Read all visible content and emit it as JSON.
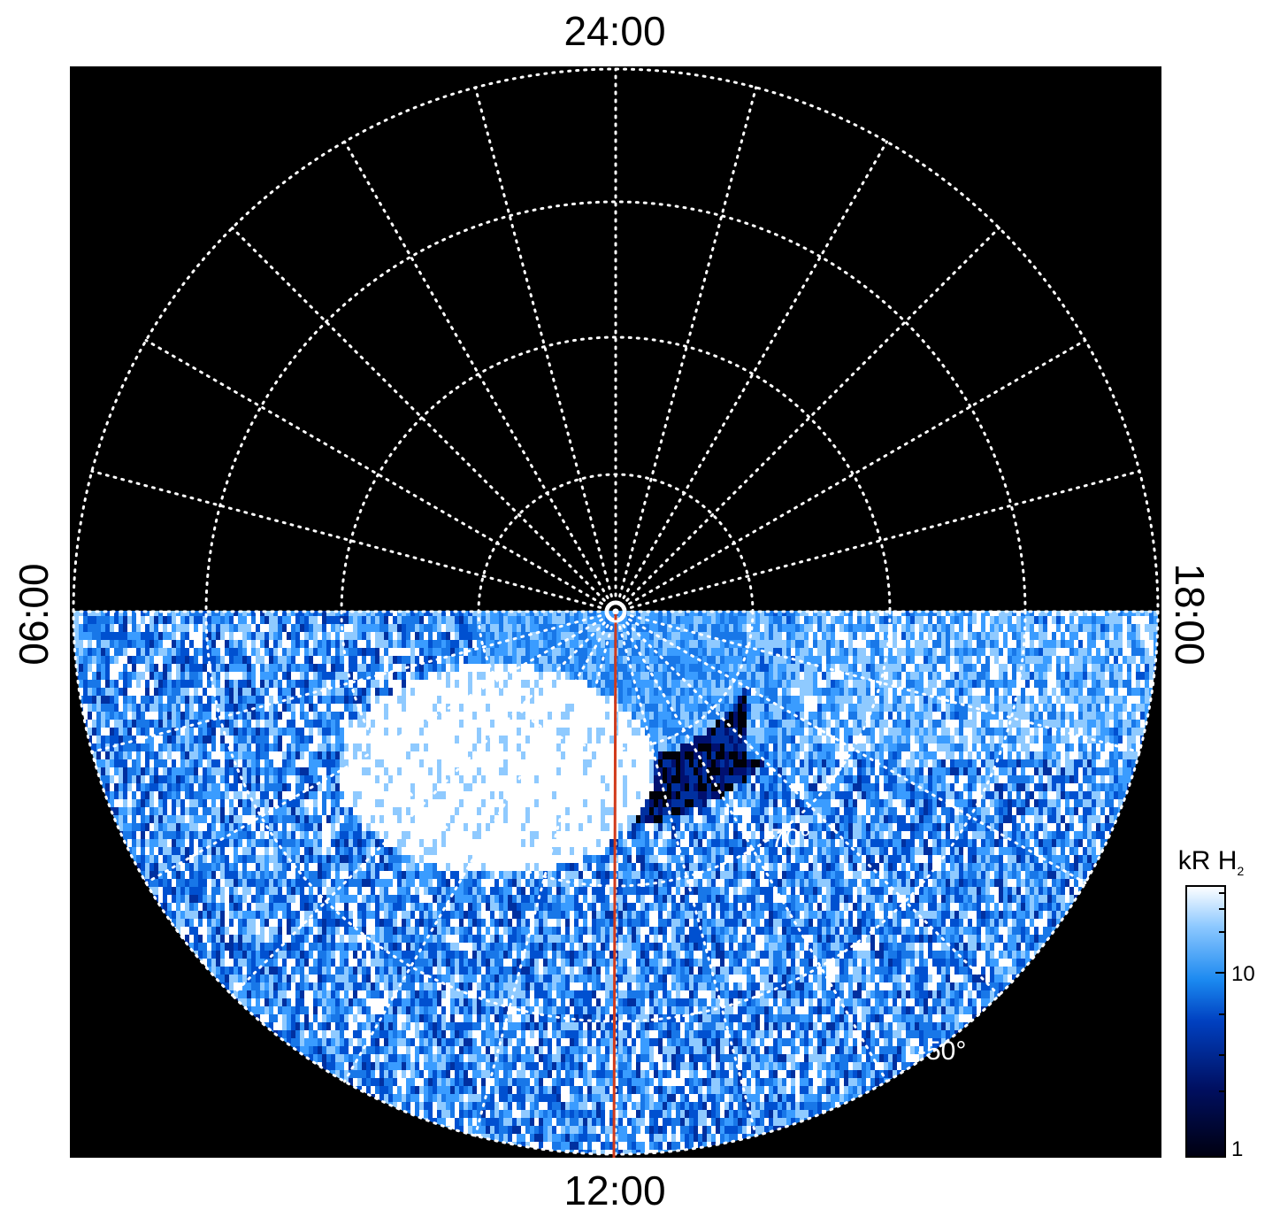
{
  "plot": {
    "top_label": "24:00",
    "bottom_label": "12:00",
    "left_label": "06:00",
    "right_label": "18:00",
    "lat_labels": [
      "-70°",
      "-50°"
    ],
    "background_color": "#000000",
    "grid_color": "#ffffff",
    "meridian_color": "#d13a1a"
  },
  "colorbar": {
    "title": "kR H",
    "title_sub": "2",
    "ticks": [
      "10",
      "1"
    ],
    "colors": [
      "#000010",
      "#000f60",
      "#0040c0",
      "#1a88f0",
      "#8cc8ff",
      "#ffffff"
    ]
  }
}
